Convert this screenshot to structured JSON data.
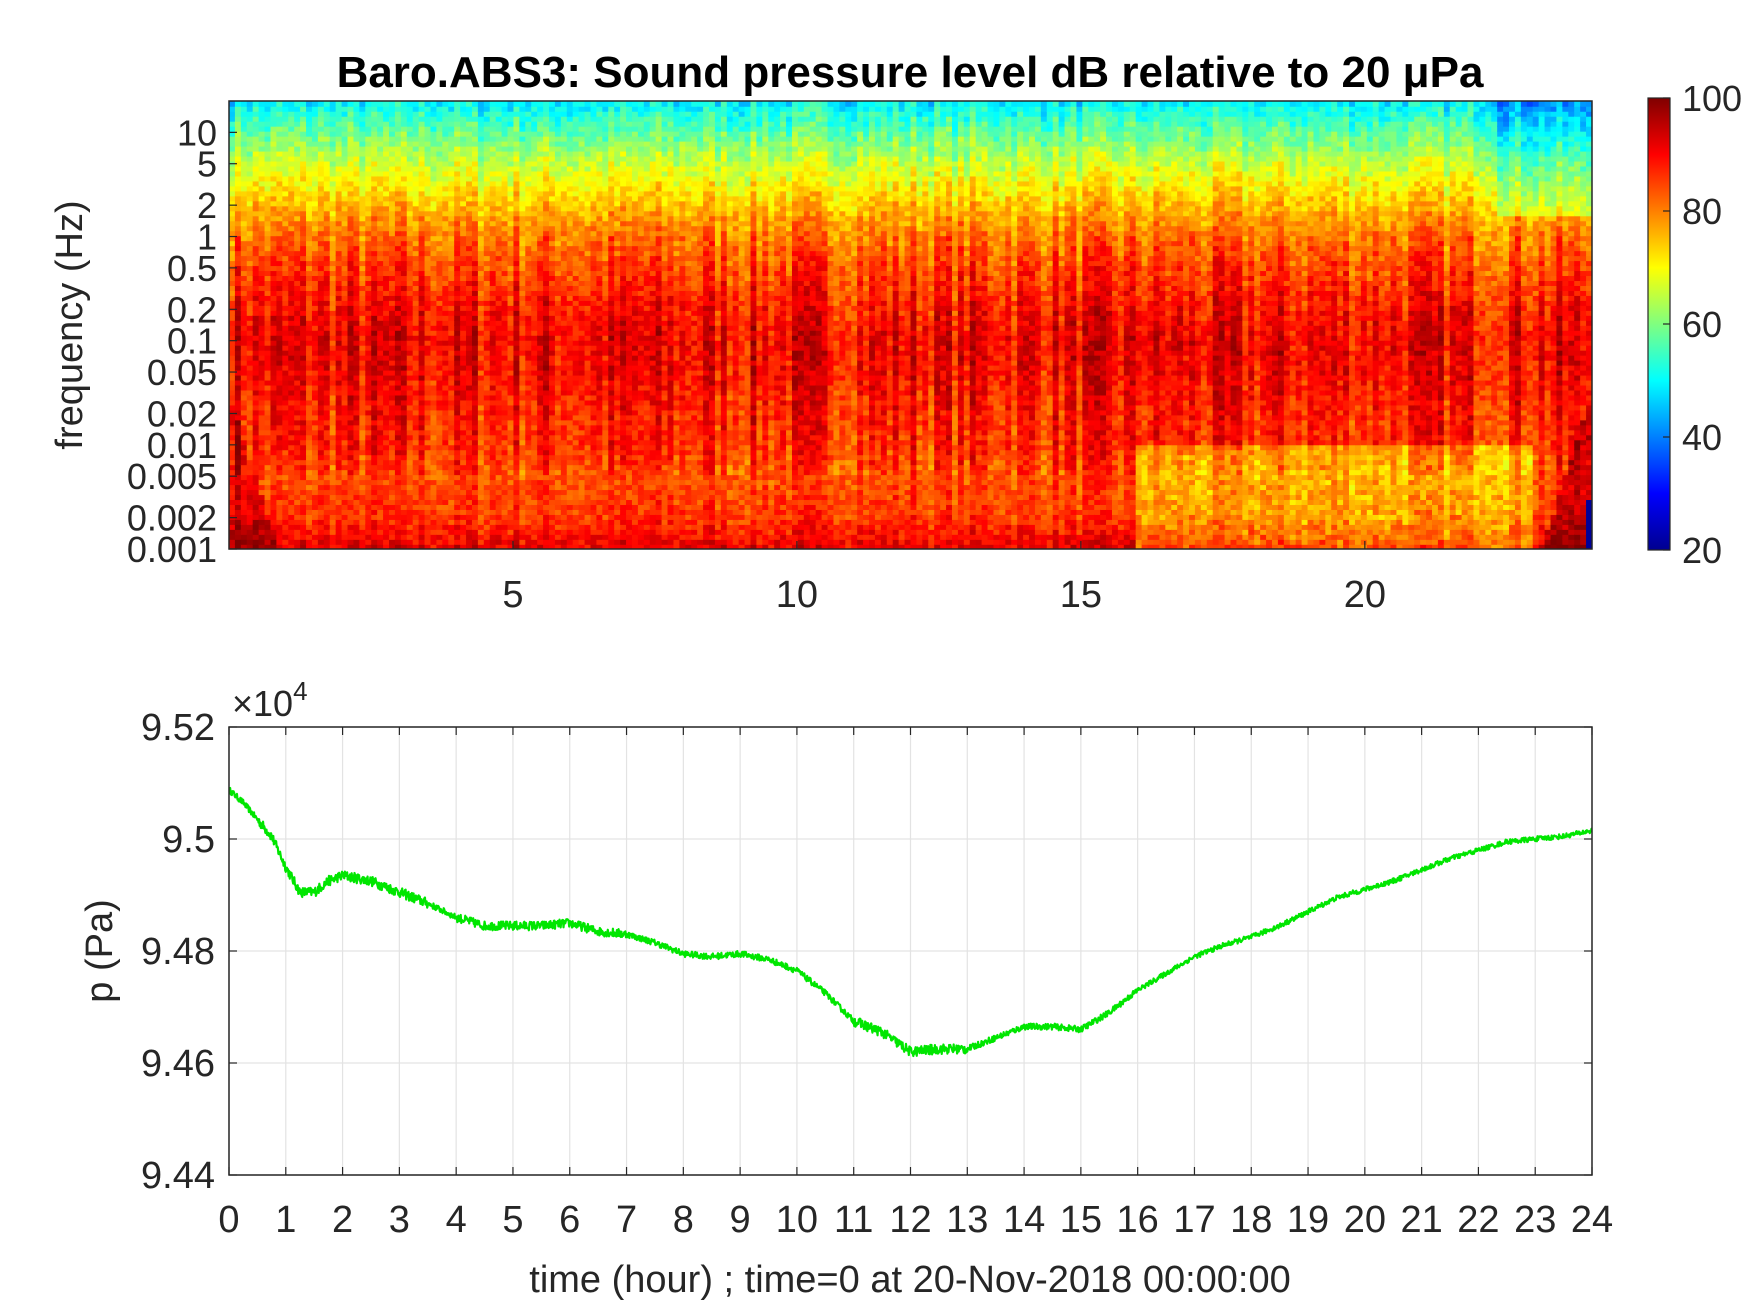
{
  "chart_data": [
    {
      "type": "heatmap",
      "title": "Baro.ABS3: Sound pressure level dB relative to 20 μPa",
      "xlabel": "",
      "ylabel": "frequency (Hz)",
      "y_scale": "log",
      "xlim": [
        0,
        24
      ],
      "ylim": [
        0.001,
        20
      ],
      "x_ticks": [
        5,
        10,
        15,
        20
      ],
      "x_tick_labels": [
        "5",
        "10",
        "15",
        "20"
      ],
      "y_ticks": [
        10,
        5,
        2,
        1,
        0.5,
        0.2,
        0.1,
        0.05,
        0.02,
        0.01,
        0.005,
        0.002,
        0.001
      ],
      "y_tick_labels": [
        "10",
        "5",
        "2",
        "1",
        "0.5",
        "0.2",
        "0.1",
        "0.05",
        "0.02",
        "0.01",
        "0.005",
        "0.002",
        "0.001"
      ],
      "colormap": "jet",
      "color_range": [
        20,
        100
      ],
      "colorbar_ticks": [
        20,
        40,
        60,
        80,
        100
      ],
      "colorbar_tick_labels": [
        "20",
        "40",
        "60",
        "80",
        "100"
      ],
      "level_by_frequency": {
        "frequency": [
          20,
          10,
          5,
          2,
          1,
          0.5,
          0.2,
          0.1,
          0.05,
          0.02,
          0.01,
          0.005,
          0.002,
          0.001
        ],
        "level": [
          49,
          58,
          66,
          75,
          81,
          85,
          89,
          91,
          90,
          88,
          87,
          84,
          86,
          92
        ]
      }
    },
    {
      "type": "line",
      "title": "",
      "xlabel": "time (hour) ; time=0 at 20-Nov-2018 00:00:00",
      "ylabel": "p (Pa)",
      "y_multiplier_label": "×10",
      "y_multiplier_exponent": "4",
      "xlim": [
        0,
        24
      ],
      "ylim": [
        9.44,
        9.52
      ],
      "grid": true,
      "x_ticks": [
        0,
        1,
        2,
        3,
        4,
        5,
        6,
        7,
        8,
        9,
        10,
        11,
        12,
        13,
        14,
        15,
        16,
        17,
        18,
        19,
        20,
        21,
        22,
        23,
        24
      ],
      "x_tick_labels": [
        "0",
        "1",
        "2",
        "3",
        "4",
        "5",
        "6",
        "7",
        "8",
        "9",
        "10",
        "11",
        "12",
        "13",
        "14",
        "15",
        "16",
        "17",
        "18",
        "19",
        "20",
        "21",
        "22",
        "23",
        "24"
      ],
      "y_ticks": [
        9.44,
        9.46,
        9.48,
        9.5,
        9.52
      ],
      "y_tick_labels": [
        "9.44",
        "9.46",
        "9.48",
        "9.5",
        "9.52"
      ],
      "series": [
        {
          "color": "#00e600",
          "x": [
            0,
            0.25,
            0.5,
            0.75,
            1,
            1.25,
            1.5,
            1.75,
            2,
            2.5,
            3,
            3.5,
            4,
            4.5,
            5,
            5.5,
            6,
            6.5,
            7,
            7.5,
            8,
            8.5,
            9,
            9.5,
            10,
            10.5,
            11,
            11.5,
            12,
            12.5,
            13,
            13.5,
            14,
            14.5,
            15,
            15.5,
            16,
            16.5,
            17,
            17.5,
            18,
            18.5,
            19,
            19.5,
            20,
            20.5,
            21,
            21.5,
            22,
            22.5,
            23,
            23.5,
            24
          ],
          "y": [
            9.5088,
            9.5065,
            9.5035,
            9.5005,
            9.495,
            9.4905,
            9.4905,
            9.4925,
            9.4935,
            9.4925,
            9.4905,
            9.4885,
            9.486,
            9.4845,
            9.4845,
            9.4845,
            9.485,
            9.4835,
            9.483,
            9.4815,
            9.4795,
            9.479,
            9.4795,
            9.4785,
            9.4765,
            9.4725,
            9.4675,
            9.4655,
            9.462,
            9.4625,
            9.4625,
            9.4645,
            9.4665,
            9.4665,
            9.466,
            9.469,
            9.473,
            9.476,
            9.479,
            9.481,
            9.4825,
            9.4845,
            9.487,
            9.4895,
            9.491,
            9.4925,
            9.4945,
            9.4965,
            9.498,
            9.4995,
            9.5,
            9.5005,
            9.5015
          ]
        }
      ]
    }
  ]
}
